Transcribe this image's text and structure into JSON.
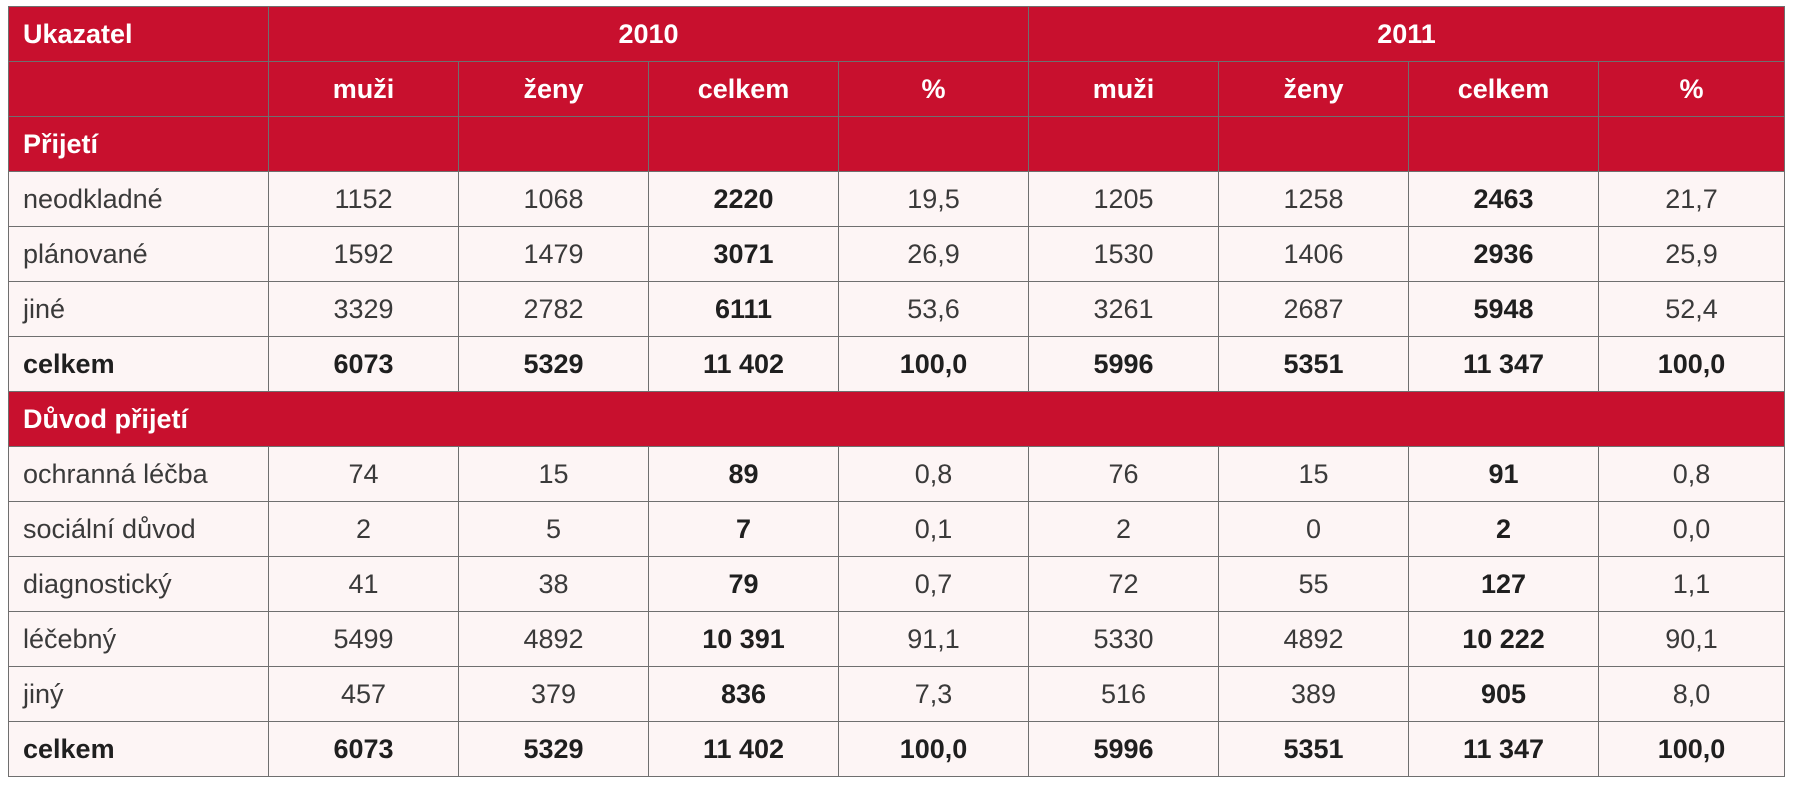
{
  "header": {
    "indicator_label": "Ukazatel",
    "years": [
      "2010",
      "2011"
    ],
    "subcolumns": [
      "muži",
      "ženy",
      "celkem",
      "%"
    ]
  },
  "sections": [
    {
      "title": "Přijetí",
      "rows": [
        {
          "label": "neodkladné",
          "values": [
            "1152",
            "1068",
            "2220",
            "19,5",
            "1205",
            "1258",
            "2463",
            "21,7"
          ]
        },
        {
          "label": "plánované",
          "values": [
            "1592",
            "1479",
            "3071",
            "26,9",
            "1530",
            "1406",
            "2936",
            "25,9"
          ]
        },
        {
          "label": "jiné",
          "values": [
            "3329",
            "2782",
            "6111",
            "53,6",
            "3261",
            "2687",
            "5948",
            "52,4"
          ]
        }
      ],
      "total": {
        "label": "celkem",
        "values": [
          "6073",
          "5329",
          "11 402",
          "100,0",
          "5996",
          "5351",
          "11 347",
          "100,0"
        ]
      }
    },
    {
      "title": "Důvod přijetí",
      "rows": [
        {
          "label": "ochranná léčba",
          "values": [
            "74",
            "15",
            "89",
            "0,8",
            "76",
            "15",
            "91",
            "0,8"
          ]
        },
        {
          "label": "sociální důvod",
          "values": [
            "2",
            "5",
            "7",
            "0,1",
            "2",
            "0",
            "2",
            "0,0"
          ]
        },
        {
          "label": "diagnostický",
          "values": [
            "41",
            "38",
            "79",
            "0,7",
            "72",
            "55",
            "127",
            "1,1"
          ]
        },
        {
          "label": "léčebný",
          "values": [
            "5499",
            "4892",
            "10 391",
            "91,1",
            "5330",
            "4892",
            "10 222",
            "90,1"
          ]
        },
        {
          "label": "jiný",
          "values": [
            "457",
            "379",
            "836",
            "7,3",
            "516",
            "389",
            "905",
            "8,0"
          ]
        }
      ],
      "total": {
        "label": "celkem",
        "values": [
          "6073",
          "5329",
          "11 402",
          "100,0",
          "5996",
          "5351",
          "11 347",
          "100,0"
        ]
      }
    }
  ],
  "colors": {
    "header_red": "#c8102e",
    "cell_bg": "#fdf5f5",
    "border": "#6f6f6f"
  }
}
